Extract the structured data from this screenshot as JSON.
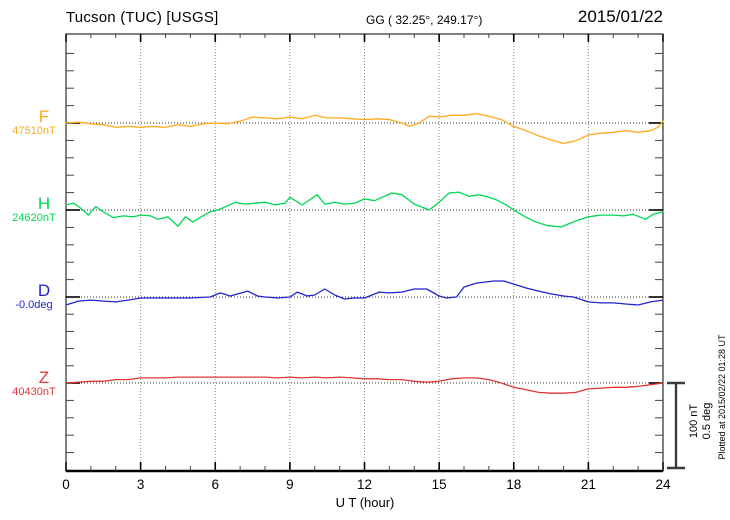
{
  "header": {
    "station": "Tucson (TUC)  [USGS]",
    "coordinates": "GG ( 32.25°, 249.17°)",
    "date": "2015/01/22"
  },
  "footer": {
    "xlabel": "U T (hour)"
  },
  "side": {
    "scale_nt": "100 nT",
    "scale_deg": "0.5 deg",
    "plotted_at": "Plotted at 2015/02/22 01:28 UT"
  },
  "chart_data": {
    "type": "line",
    "title": "Tucson (TUC) [USGS] magnetogram 2015/01/22",
    "xlabel": "U T (hour)",
    "xlim": [
      0,
      24
    ],
    "xticks": [
      0,
      3,
      6,
      9,
      12,
      15,
      18,
      21,
      24
    ],
    "grid": "vertical dotted at 3h intervals, dotted baseline per trace",
    "legend_position": "left margin trace labels",
    "scale": {
      "nT_per_div": 100,
      "deg_per_div": 0.5
    },
    "series": [
      {
        "name": "F",
        "unit": "nT",
        "base": 47510,
        "value_label": "47510nT",
        "color": "#ffaa1e",
        "points_note": "pairs [hour, deviation from base]",
        "points": [
          [
            0,
            0
          ],
          [
            0.5,
            1
          ],
          [
            1,
            -1
          ],
          [
            1.5,
            -2
          ],
          [
            2,
            -5
          ],
          [
            2.5,
            -4
          ],
          [
            3,
            -5
          ],
          [
            3.5,
            -4
          ],
          [
            4,
            -5
          ],
          [
            4.5,
            -2
          ],
          [
            5,
            -4
          ],
          [
            5.5,
            -1
          ],
          [
            6,
            0
          ],
          [
            6.5,
            -1
          ],
          [
            7,
            2
          ],
          [
            7.5,
            7
          ],
          [
            8,
            6
          ],
          [
            8.5,
            5
          ],
          [
            9,
            7
          ],
          [
            9.5,
            5
          ],
          [
            10,
            9
          ],
          [
            10.5,
            6
          ],
          [
            11,
            6
          ],
          [
            11.5,
            5
          ],
          [
            12,
            4
          ],
          [
            12.5,
            5
          ],
          [
            13,
            4
          ],
          [
            13.5,
            0
          ],
          [
            13.8,
            -4
          ],
          [
            14.2,
            0
          ],
          [
            14.6,
            8
          ],
          [
            15,
            7
          ],
          [
            15.5,
            9
          ],
          [
            16,
            9
          ],
          [
            16.5,
            11
          ],
          [
            17,
            8
          ],
          [
            17.5,
            4
          ],
          [
            18,
            -4
          ],
          [
            18.5,
            -9
          ],
          [
            19,
            -15
          ],
          [
            19.5,
            -20
          ],
          [
            20,
            -24
          ],
          [
            20.5,
            -21
          ],
          [
            21,
            -14
          ],
          [
            21.5,
            -12
          ],
          [
            22,
            -11
          ],
          [
            22.5,
            -9
          ],
          [
            23,
            -11
          ],
          [
            23.5,
            -9
          ],
          [
            23.8,
            -5
          ],
          [
            24,
            2
          ]
        ]
      },
      {
        "name": "H",
        "unit": "nT",
        "base": 24620,
        "value_label": "24620nT",
        "color": "#00d852",
        "points": [
          [
            0,
            6
          ],
          [
            0.3,
            8
          ],
          [
            0.6,
            2
          ],
          [
            0.9,
            -6
          ],
          [
            1.2,
            4
          ],
          [
            1.5,
            -2
          ],
          [
            1.9,
            -9
          ],
          [
            2.3,
            -7
          ],
          [
            2.7,
            -8
          ],
          [
            3,
            -6
          ],
          [
            3.4,
            -7
          ],
          [
            3.7,
            -11
          ],
          [
            4.1,
            -8
          ],
          [
            4.5,
            -19
          ],
          [
            4.8,
            -8
          ],
          [
            5.1,
            -14
          ],
          [
            5.5,
            -7
          ],
          [
            5.8,
            -2
          ],
          [
            6.1,
            0
          ],
          [
            6.5,
            5
          ],
          [
            6.8,
            9
          ],
          [
            7.2,
            7
          ],
          [
            7.6,
            8
          ],
          [
            8,
            9
          ],
          [
            8.4,
            6
          ],
          [
            8.8,
            8
          ],
          [
            9,
            15
          ],
          [
            9.5,
            6
          ],
          [
            10.1,
            18
          ],
          [
            10.4,
            7
          ],
          [
            10.8,
            9
          ],
          [
            11.2,
            7
          ],
          [
            11.6,
            8
          ],
          [
            12,
            13
          ],
          [
            12.4,
            11
          ],
          [
            13.1,
            20
          ],
          [
            13.5,
            18
          ],
          [
            14,
            7
          ],
          [
            14.6,
            0
          ],
          [
            15,
            9
          ],
          [
            15.4,
            20
          ],
          [
            15.8,
            21
          ],
          [
            16.2,
            16
          ],
          [
            16.6,
            18
          ],
          [
            17,
            15
          ],
          [
            17.3,
            12
          ],
          [
            17.7,
            6
          ],
          [
            18,
            0
          ],
          [
            18.4,
            -7
          ],
          [
            18.8,
            -13
          ],
          [
            19.3,
            -18
          ],
          [
            19.9,
            -20
          ],
          [
            20.4,
            -14
          ],
          [
            21,
            -8
          ],
          [
            21.5,
            -6
          ],
          [
            22,
            -6
          ],
          [
            22.4,
            -7
          ],
          [
            22.8,
            -5
          ],
          [
            23.3,
            -11
          ],
          [
            23.6,
            -5
          ],
          [
            24,
            -2
          ]
        ]
      },
      {
        "name": "D",
        "unit": "deg",
        "base": 0,
        "value_label": "-0.0deg",
        "color": "#2323cf",
        "points": [
          [
            0,
            -0.047
          ],
          [
            0.5,
            -0.024
          ],
          [
            1,
            -0.018
          ],
          [
            1.5,
            -0.024
          ],
          [
            2,
            -0.029
          ],
          [
            2.5,
            -0.018
          ],
          [
            3,
            -0.006
          ],
          [
            4,
            -0.006
          ],
          [
            5,
            -0.006
          ],
          [
            5.8,
            0
          ],
          [
            6.2,
            0.024
          ],
          [
            6.6,
            0.006
          ],
          [
            7.3,
            0.035
          ],
          [
            7.7,
            0.006
          ],
          [
            8,
            0
          ],
          [
            8.5,
            -0.006
          ],
          [
            9,
            0
          ],
          [
            9.3,
            0.029
          ],
          [
            9.7,
            0.006
          ],
          [
            10,
            0.012
          ],
          [
            10.4,
            0.047
          ],
          [
            10.8,
            0.012
          ],
          [
            11.2,
            -0.012
          ],
          [
            11.6,
            -0.006
          ],
          [
            12,
            -0.006
          ],
          [
            12.3,
            0.012
          ],
          [
            12.6,
            0.029
          ],
          [
            13,
            0.024
          ],
          [
            13.5,
            0.029
          ],
          [
            14,
            0.047
          ],
          [
            14.5,
            0.047
          ],
          [
            15,
            0.006
          ],
          [
            15.3,
            -0.006
          ],
          [
            15.7,
            0
          ],
          [
            16,
            0.059
          ],
          [
            16.5,
            0.082
          ],
          [
            17.2,
            0.094
          ],
          [
            17.6,
            0.094
          ],
          [
            18,
            0.076
          ],
          [
            18.5,
            0.053
          ],
          [
            19,
            0.035
          ],
          [
            19.5,
            0.018
          ],
          [
            20,
            0.006
          ],
          [
            20.4,
            0
          ],
          [
            21,
            -0.029
          ],
          [
            21.5,
            -0.035
          ],
          [
            22,
            -0.035
          ],
          [
            22.5,
            -0.041
          ],
          [
            23,
            -0.047
          ],
          [
            23.5,
            -0.029
          ],
          [
            24,
            -0.018
          ]
        ]
      },
      {
        "name": "Z",
        "unit": "nT",
        "base": 40430,
        "value_label": "40430nT",
        "color": "#e03535",
        "points": [
          [
            0,
            0
          ],
          [
            0.5,
            1
          ],
          [
            1,
            2
          ],
          [
            1.5,
            2
          ],
          [
            2,
            4
          ],
          [
            2.5,
            4
          ],
          [
            3,
            6
          ],
          [
            3.5,
            6
          ],
          [
            4,
            6
          ],
          [
            4.5,
            7
          ],
          [
            5,
            7
          ],
          [
            5.5,
            7
          ],
          [
            6,
            7
          ],
          [
            6.5,
            7
          ],
          [
            7,
            7
          ],
          [
            7.5,
            7
          ],
          [
            8,
            7
          ],
          [
            8.5,
            6
          ],
          [
            9,
            7
          ],
          [
            9.5,
            6
          ],
          [
            10,
            7
          ],
          [
            10.5,
            6
          ],
          [
            11,
            7
          ],
          [
            11.5,
            6
          ],
          [
            12,
            5
          ],
          [
            12.5,
            5
          ],
          [
            13,
            4
          ],
          [
            13.5,
            4
          ],
          [
            14,
            2
          ],
          [
            14.5,
            1
          ],
          [
            15,
            2
          ],
          [
            15.5,
            5
          ],
          [
            16,
            6
          ],
          [
            16.5,
            6
          ],
          [
            17,
            4
          ],
          [
            17.5,
            0
          ],
          [
            18,
            -5
          ],
          [
            18.5,
            -8
          ],
          [
            19,
            -11
          ],
          [
            19.5,
            -12
          ],
          [
            20,
            -12
          ],
          [
            20.5,
            -11
          ],
          [
            21,
            -7
          ],
          [
            21.5,
            -6
          ],
          [
            22,
            -5
          ],
          [
            22.5,
            -5
          ],
          [
            23,
            -4
          ],
          [
            23.5,
            -2
          ],
          [
            24,
            0
          ]
        ]
      }
    ]
  }
}
